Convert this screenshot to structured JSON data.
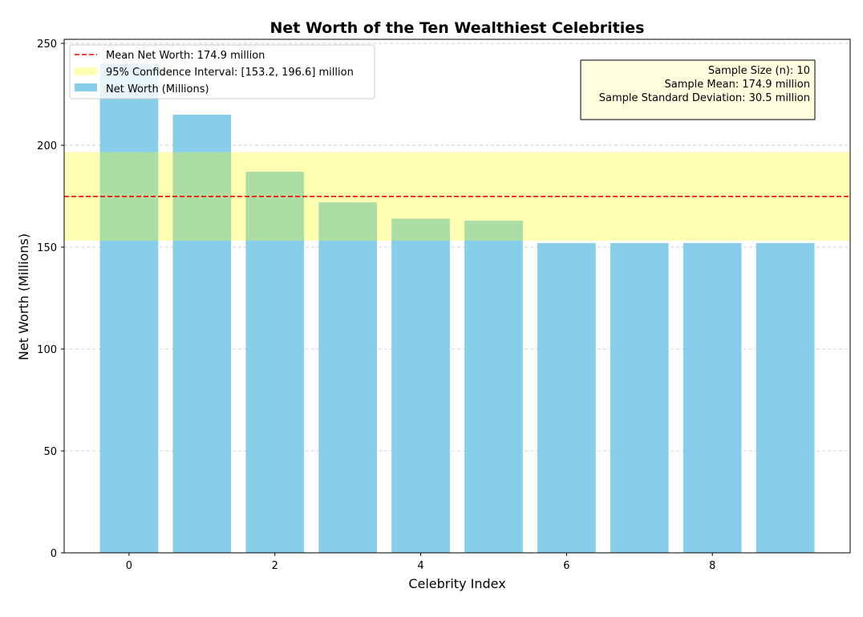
{
  "chart_data": {
    "type": "bar",
    "title": "Net Worth of the Ten Wealthiest Celebrities",
    "xlabel": "Celebrity Index",
    "ylabel": "Net Worth (Millions)",
    "x": [
      0,
      1,
      2,
      3,
      4,
      5,
      6,
      7,
      8,
      9
    ],
    "values": [
      240,
      215,
      187,
      172,
      164,
      163,
      152,
      152,
      152,
      152
    ],
    "xlim": [
      -0.89,
      9.89
    ],
    "ylim": [
      0,
      252
    ],
    "xticks": [
      0,
      2,
      4,
      6,
      8
    ],
    "yticks": [
      0,
      50,
      100,
      150,
      200,
      250
    ],
    "grid": "y-axis dashed",
    "mean": 174.9,
    "ci": [
      153.2,
      196.6
    ],
    "colors": {
      "bars": "#87ceeb",
      "mean_line": "#ff0000",
      "ci_band": "#ffff00",
      "stats_box": "#ffffe0"
    },
    "legend": {
      "placement": "upper-left",
      "entries": [
        {
          "label": "Mean Net Worth: 174.9 million",
          "kind": "line"
        },
        {
          "label": "95% Confidence Interval: [153.2, 196.6] million",
          "kind": "band"
        },
        {
          "label": "Net Worth (Millions)",
          "kind": "bar"
        }
      ]
    },
    "stats_box": {
      "placement": "upper-right",
      "lines": [
        "Sample Size (n): 10",
        "Sample Mean: 174.9 million",
        "Sample Standard Deviation: 30.5 million"
      ]
    }
  }
}
